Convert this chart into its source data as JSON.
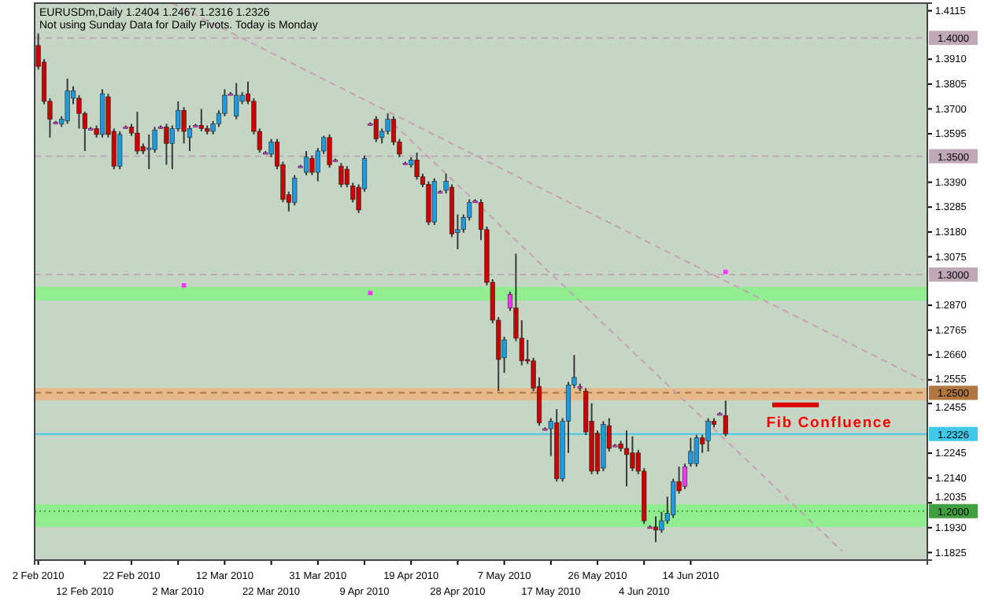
{
  "chart_data": {
    "type": "candlestick",
    "title": "EURUSDm,Daily  1.2404 1.2467 1.2316 1.2326",
    "subtitle": "Not using Sunday Data for Daily Pivots.  Today is Monday",
    "categories": [
      "2 Feb 2010",
      null,
      null,
      null,
      null,
      null,
      null,
      null,
      "12 Feb 2010",
      null,
      null,
      null,
      null,
      null,
      null,
      null,
      "22 Feb 2010",
      null,
      null,
      null,
      null,
      null,
      null,
      null,
      "2 Mar 2010",
      null,
      null,
      null,
      null,
      null,
      null,
      null,
      "12 Mar 2010",
      null,
      null,
      null,
      null,
      null,
      null,
      null,
      "22 Mar 2010",
      null,
      null,
      null,
      null,
      null,
      null,
      null,
      "31 Mar 2010",
      null,
      null,
      null,
      null,
      null,
      null,
      null,
      "9 Apr 2010",
      null,
      null,
      null,
      null,
      null,
      null,
      null,
      "19 Apr 2010",
      null,
      null,
      null,
      null,
      null,
      null,
      null,
      "28 Apr 2010",
      null,
      null,
      null,
      null,
      null,
      null,
      null,
      "7 May 2010",
      null,
      null,
      null,
      null,
      null,
      null,
      null,
      "17 May 2010",
      null,
      null,
      null,
      null,
      null,
      null,
      null,
      "26 May 2010",
      null,
      null,
      null,
      null,
      null,
      null,
      null,
      "4 Jun 2010",
      null,
      null,
      null,
      null,
      null,
      null,
      null,
      "14 Jun 2010",
      null,
      null,
      null,
      null,
      null,
      null,
      null,
      null,
      null,
      null,
      null,
      null,
      null,
      null,
      null,
      null,
      null,
      null,
      null,
      null,
      null,
      null,
      null,
      null,
      null,
      null,
      null,
      null,
      null,
      null,
      null,
      null,
      null,
      null,
      null,
      null,
      null,
      null,
      null,
      null
    ],
    "ohlc": [
      [
        1.3968,
        1.4019,
        1.3866,
        1.3879
      ],
      [
        1.3898,
        1.3911,
        1.372,
        1.3732
      ],
      [
        1.3732,
        1.3745,
        1.3579,
        1.3656
      ],
      [
        1.3643,
        1.3649,
        1.3637,
        1.3643
      ],
      [
        1.3637,
        1.3669,
        1.3624,
        1.3656
      ],
      [
        1.3649,
        1.3828,
        1.3637,
        1.3777
      ],
      [
        1.3745,
        1.3796,
        1.372,
        1.3777
      ],
      [
        1.3745,
        1.3758,
        1.3617,
        1.3681
      ],
      [
        1.3681,
        1.3688,
        1.3522,
        1.3617
      ],
      [
        1.3617,
        1.3624,
        1.3611,
        1.3617
      ],
      [
        1.3617,
        1.363,
        1.3579,
        1.3592
      ],
      [
        1.3592,
        1.3783,
        1.3579,
        1.3764
      ],
      [
        1.3751,
        1.3764,
        1.3579,
        1.3592
      ],
      [
        1.3605,
        1.3617,
        1.3445,
        1.3458
      ],
      [
        1.3458,
        1.3605,
        1.3445,
        1.3592
      ],
      [
        1.3624,
        1.363,
        1.3617,
        1.3624
      ],
      [
        1.3624,
        1.3637,
        1.3586,
        1.3598
      ],
      [
        1.3598,
        1.3688,
        1.3509,
        1.3522
      ],
      [
        1.3541,
        1.3554,
        1.3509,
        1.3522
      ],
      [
        1.3528,
        1.3592,
        1.3445,
        1.3535
      ],
      [
        1.3528,
        1.3624,
        1.3515,
        1.3611
      ],
      [
        1.3624,
        1.363,
        1.3617,
        1.3624
      ],
      [
        1.3624,
        1.3637,
        1.3464,
        1.3554
      ],
      [
        1.3554,
        1.363,
        1.3445,
        1.3617
      ],
      [
        1.3617,
        1.3732,
        1.3605,
        1.3694
      ],
      [
        1.3694,
        1.3707,
        1.3554,
        1.3605
      ],
      [
        1.3579,
        1.363,
        1.3522,
        1.3617
      ],
      [
        1.363,
        1.3637,
        1.3624,
        1.363
      ],
      [
        1.363,
        1.37,
        1.3605,
        1.3617
      ],
      [
        1.3617,
        1.363,
        1.3592,
        1.3605
      ],
      [
        1.3605,
        1.3649,
        1.3592,
        1.3637
      ],
      [
        1.3637,
        1.3694,
        1.3624,
        1.3681
      ],
      [
        1.3681,
        1.3783,
        1.3669,
        1.3758
      ],
      [
        1.3764,
        1.3771,
        1.3758,
        1.3764
      ],
      [
        1.3669,
        1.3809,
        1.3656,
        1.3758
      ],
      [
        1.3732,
        1.3771,
        1.372,
        1.3758
      ],
      [
        1.3764,
        1.3815,
        1.372,
        1.3732
      ],
      [
        1.3732,
        1.3745,
        1.3592,
        1.3605
      ],
      [
        1.3605,
        1.3617,
        1.3515,
        1.3528
      ],
      [
        1.3515,
        1.3522,
        1.3509,
        1.3515
      ],
      [
        1.3509,
        1.3573,
        1.3496,
        1.356
      ],
      [
        1.356,
        1.3573,
        1.3445,
        1.3458
      ],
      [
        1.3464,
        1.3477,
        1.3305,
        1.3318
      ],
      [
        1.3337,
        1.335,
        1.3267,
        1.3305
      ],
      [
        1.3305,
        1.342,
        1.3292,
        1.3407
      ],
      [
        1.3458,
        1.3464,
        1.3452,
        1.3458
      ],
      [
        1.3432,
        1.3522,
        1.342,
        1.3496
      ],
      [
        1.349,
        1.3503,
        1.342,
        1.3432
      ],
      [
        1.3432,
        1.3535,
        1.3394,
        1.3522
      ],
      [
        1.3522,
        1.3586,
        1.3509,
        1.3579
      ],
      [
        1.3579,
        1.3592,
        1.3452,
        1.3464
      ],
      [
        1.3484,
        1.349,
        1.3477,
        1.3484
      ],
      [
        1.3458,
        1.3471,
        1.3369,
        1.3381
      ],
      [
        1.3445,
        1.3458,
        1.3369,
        1.3381
      ],
      [
        1.3375,
        1.3388,
        1.3305,
        1.3318
      ],
      [
        1.3369,
        1.3381,
        1.326,
        1.3273
      ],
      [
        1.3362,
        1.3503,
        1.335,
        1.349
      ],
      [
        1.3637,
        1.3643,
        1.363,
        1.3637
      ],
      [
        1.3656,
        1.3669,
        1.356,
        1.3573
      ],
      [
        1.3579,
        1.3617,
        1.3554,
        1.3605
      ],
      [
        1.3605,
        1.3681,
        1.3592,
        1.3656
      ],
      [
        1.3656,
        1.3669,
        1.3547,
        1.356
      ],
      [
        1.356,
        1.3573,
        1.3496,
        1.3509
      ],
      [
        1.3471,
        1.3477,
        1.3464,
        1.3471
      ],
      [
        1.3464,
        1.3496,
        1.3452,
        1.3484
      ],
      [
        1.3484,
        1.3515,
        1.3401,
        1.3413
      ],
      [
        1.3413,
        1.3426,
        1.3369,
        1.3381
      ],
      [
        1.3381,
        1.3394,
        1.3209,
        1.3222
      ],
      [
        1.3222,
        1.3407,
        1.3209,
        1.3394
      ],
      [
        1.335,
        1.3356,
        1.3343,
        1.335
      ],
      [
        1.3356,
        1.3426,
        1.3343,
        1.3394
      ],
      [
        1.3369,
        1.3381,
        1.3158,
        1.3171
      ],
      [
        1.3177,
        1.3254,
        1.3107,
        1.319
      ],
      [
        1.319,
        1.3254,
        1.3177,
        1.3241
      ],
      [
        1.3241,
        1.3318,
        1.3228,
        1.3305
      ],
      [
        1.3311,
        1.3318,
        1.3305,
        1.3311
      ],
      [
        1.3305,
        1.3318,
        1.3145,
        1.319
      ],
      [
        1.319,
        1.3203,
        1.2954,
        1.2967
      ],
      [
        1.2967,
        1.298,
        1.2794,
        1.2807
      ],
      [
        1.2807,
        1.282,
        1.2507,
        1.2641
      ],
      [
        1.2648,
        1.2737,
        1.2584,
        1.2724
      ],
      [
        1.2916,
        1.2928,
        1.2846,
        1.2858
      ],
      [
        1.2858,
        1.3088,
        1.2718,
        1.2731
      ],
      [
        1.2731,
        1.2807,
        1.2616,
        1.2635
      ],
      [
        1.2641,
        1.2724,
        1.2622,
        1.2635
      ],
      [
        1.2635,
        1.2648,
        1.2507,
        1.252
      ],
      [
        1.2527,
        1.2565,
        1.2361,
        1.2373
      ],
      [
        1.2348,
        1.2354,
        1.2341,
        1.2348
      ],
      [
        1.2348,
        1.2393,
        1.2233,
        1.238
      ],
      [
        1.2373,
        1.2431,
        1.2125,
        1.2137
      ],
      [
        1.2137,
        1.2393,
        1.2125,
        1.238
      ],
      [
        1.238,
        1.2546,
        1.2246,
        1.2533
      ],
      [
        1.2533,
        1.266,
        1.252,
        1.2565
      ],
      [
        1.2527,
        1.2539,
        1.2507,
        1.2527
      ],
      [
        1.2507,
        1.252,
        1.2322,
        1.2335
      ],
      [
        1.238,
        1.2456,
        1.2156,
        1.2169
      ],
      [
        1.2329,
        1.2341,
        1.2156,
        1.2169
      ],
      [
        1.2182,
        1.238,
        1.2169,
        1.2367
      ],
      [
        1.2361,
        1.2393,
        1.2252,
        1.2265
      ],
      [
        1.2278,
        1.2284,
        1.2271,
        1.2278
      ],
      [
        1.2284,
        1.2297,
        1.2252,
        1.2265
      ],
      [
        1.2265,
        1.2341,
        1.2105,
        1.2239
      ],
      [
        1.2246,
        1.2316,
        1.2169,
        1.2182
      ],
      [
        1.2246,
        1.2259,
        1.2156,
        1.2169
      ],
      [
        1.2169,
        1.2182,
        1.1946,
        1.1959
      ],
      [
        1.1933,
        1.194,
        1.1927,
        1.1933
      ],
      [
        1.1933,
        1.1978,
        1.1869,
        1.192
      ],
      [
        1.192,
        1.1997,
        1.1908,
        1.1959
      ],
      [
        1.1959,
        1.2061,
        1.1946,
        1.1991
      ],
      [
        1.1984,
        1.2137,
        1.1971,
        1.2125
      ],
      [
        1.2125,
        1.2188,
        1.2074,
        1.2086
      ],
      [
        1.2105,
        1.2201,
        1.2093,
        1.2188
      ],
      [
        1.2201,
        1.231,
        1.2188,
        1.2252
      ],
      [
        1.2201,
        1.2322,
        1.2188,
        1.231
      ],
      [
        1.231,
        1.2322,
        1.2246,
        1.2284
      ],
      [
        1.2297,
        1.2393,
        1.2252,
        1.238
      ],
      [
        1.238,
        1.2393,
        1.2354,
        1.2367
      ],
      [
        1.2412,
        1.2418,
        1.2405,
        1.2412
      ],
      [
        1.2404,
        1.2467,
        1.2316,
        1.2326
      ],
      null,
      null,
      null,
      null,
      null,
      null,
      null,
      null,
      null,
      null,
      null,
      null,
      null,
      null,
      null,
      null,
      null,
      null,
      null,
      null,
      null,
      null,
      null,
      null,
      null,
      null,
      null,
      null,
      null,
      null,
      null,
      null,
      null,
      null
    ],
    "colors": [
      "#cc0000",
      "#cc0000",
      "#cc0000",
      "#ff33ff",
      "#1e9be0",
      "#1e9be0",
      "#1e9be0",
      "#cc0000",
      "#cc0000",
      "#ff33ff",
      "#cc0000",
      "#1e9be0",
      "#cc0000",
      "#cc0000",
      "#1e9be0",
      "#ff33ff",
      "#cc0000",
      "#cc0000",
      "#cc0000",
      "#1e9be0",
      "#1e9be0",
      "#ff33ff",
      "#cc0000",
      "#1e9be0",
      "#1e9be0",
      "#cc0000",
      "#1e9be0",
      "#ff33ff",
      "#cc0000",
      "#cc0000",
      "#1e9be0",
      "#1e9be0",
      "#1e9be0",
      "#ff33ff",
      "#1e9be0",
      "#1e9be0",
      "#cc0000",
      "#cc0000",
      "#cc0000",
      "#ff33ff",
      "#1e9be0",
      "#cc0000",
      "#cc0000",
      "#cc0000",
      "#1e9be0",
      "#ff33ff",
      "#1e9be0",
      "#cc0000",
      "#1e9be0",
      "#1e9be0",
      "#cc0000",
      "#ff33ff",
      "#cc0000",
      "#cc0000",
      "#cc0000",
      "#cc0000",
      "#1e9be0",
      "#ff33ff",
      "#cc0000",
      "#1e9be0",
      "#1e9be0",
      "#cc0000",
      "#cc0000",
      "#ff33ff",
      "#1e9be0",
      "#cc0000",
      "#cc0000",
      "#cc0000",
      "#1e9be0",
      "#ff33ff",
      "#1e9be0",
      "#cc0000",
      "#1e9be0",
      "#1e9be0",
      "#1e9be0",
      "#ff33ff",
      "#cc0000",
      "#cc0000",
      "#cc0000",
      "#cc0000",
      "#1e9be0",
      "#ff33ff",
      "#cc0000",
      "#cc0000",
      "#cc0000",
      "#cc0000",
      "#cc0000",
      "#ff33ff",
      "#1e9be0",
      "#cc0000",
      "#1e9be0",
      "#1e9be0",
      "#1e9be0",
      "#ff33ff",
      "#cc0000",
      "#cc0000",
      "#cc0000",
      "#1e9be0",
      "#cc0000",
      "#ff33ff",
      "#cc0000",
      "#cc0000",
      "#cc0000",
      "#cc0000",
      "#cc0000",
      "#ff33ff",
      "#cc0000",
      "#1e9be0",
      "#1e9be0",
      "#1e9be0",
      "#cc0000",
      "#ff33ff",
      "#1e9be0",
      "#1e9be0",
      "#cc0000",
      "#1e9be0",
      "#cc0000",
      "#ff33ff",
      "#cc0000",
      null,
      null,
      null,
      null,
      null,
      null,
      null,
      null,
      null,
      null,
      null,
      null,
      null,
      null,
      null,
      null,
      null,
      null,
      null,
      null,
      null,
      null,
      null,
      null,
      null,
      null,
      null,
      null,
      null,
      null,
      null,
      null,
      null,
      null
    ],
    "series": [
      {
        "type": "line",
        "color": "#c8a0b4",
        "line_style": "dashed",
        "values": [
          null,
          null,
          null,
          null,
          null,
          null,
          null,
          null,
          null,
          null,
          null,
          null,
          null,
          null,
          null,
          null,
          null,
          null,
          null,
          null,
          null,
          null,
          null,
          1.4147,
          null,
          null,
          null,
          null,
          null,
          null,
          null,
          null,
          null,
          null,
          null,
          null,
          null,
          null,
          null,
          null,
          null,
          null,
          null,
          null,
          null,
          null,
          null,
          null,
          null,
          null,
          null,
          null,
          null,
          null,
          null,
          null,
          null,
          null,
          null,
          null,
          null,
          null,
          null,
          null,
          null,
          null,
          null,
          null,
          null,
          null,
          null,
          null,
          null,
          null,
          null,
          null,
          null,
          null,
          null,
          null,
          null,
          null,
          null,
          null,
          null,
          null,
          null,
          null,
          null,
          null,
          null,
          null,
          null,
          null,
          null,
          null,
          null,
          null,
          null,
          null,
          null,
          null,
          null,
          null,
          null,
          null,
          null,
          null,
          null,
          null,
          null,
          null,
          null,
          null,
          null,
          null,
          null,
          null,
          null,
          null,
          null,
          null,
          null,
          null,
          null,
          null,
          null,
          null,
          null,
          null,
          null,
          null,
          null,
          null,
          null,
          null,
          null,
          null,
          null,
          null,
          null,
          null,
          null,
          null,
          null,
          null,
          null,
          null,
          null,
          null,
          null,
          null,
          1.2552
        ]
      },
      {
        "type": "line",
        "color": "#c8a0b4",
        "line_style": "dashed",
        "values": [
          null,
          null,
          null,
          null,
          null,
          null,
          null,
          null,
          null,
          null,
          null,
          null,
          null,
          null,
          null,
          null,
          null,
          null,
          null,
          null,
          null,
          null,
          null,
          null,
          null,
          null,
          null,
          null,
          null,
          null,
          null,
          null,
          null,
          null,
          null,
          null,
          null,
          null,
          null,
          null,
          null,
          null,
          null,
          null,
          null,
          null,
          null,
          null,
          null,
          null,
          null,
          null,
          null,
          null,
          null,
          null,
          null,
          null,
          null,
          null,
          null,
          1.3637,
          null,
          null,
          null,
          null,
          null,
          null,
          null,
          null,
          null,
          null,
          null,
          null,
          null,
          null,
          null,
          null,
          null,
          null,
          null,
          null,
          null,
          null,
          null,
          null,
          null,
          null,
          null,
          null,
          null,
          null,
          null,
          null,
          null,
          null,
          null,
          null,
          null,
          null,
          null,
          null,
          null,
          null,
          null,
          null,
          null,
          null,
          null,
          null,
          null,
          null,
          null,
          null,
          null,
          null,
          null,
          null,
          null,
          null,
          null,
          null,
          null,
          null,
          null,
          null,
          null,
          null,
          null,
          null,
          null,
          null,
          null,
          null,
          null,
          null,
          null,
          null,
          1.1831,
          null,
          null,
          null,
          null,
          null,
          null,
          null,
          null,
          null,
          null,
          null,
          null,
          null,
          null
        ]
      },
      {
        "type": "scatter",
        "color": "#ff33ff",
        "marker": "square",
        "values": [
          null,
          null,
          null,
          null,
          null,
          null,
          null,
          null,
          null,
          null,
          null,
          null,
          null,
          null,
          null,
          null,
          null,
          null,
          null,
          null,
          null,
          null,
          null,
          null,
          null,
          1.2954,
          null,
          null,
          null,
          null,
          null,
          null,
          null,
          null,
          null,
          null,
          null,
          null,
          null,
          null,
          null,
          null,
          null,
          null,
          null,
          null,
          null,
          null,
          null,
          null,
          null,
          null,
          null,
          null,
          null,
          null,
          null,
          1.2922,
          null,
          null,
          null,
          null,
          null,
          null,
          null,
          null,
          null,
          null,
          null,
          null,
          null,
          null,
          null,
          null,
          null,
          null,
          null,
          null,
          null,
          null,
          null,
          null,
          null,
          null,
          null,
          null,
          null,
          null,
          null,
          null,
          null,
          null,
          null,
          null,
          null,
          null,
          null,
          null,
          null,
          null,
          null,
          null,
          null,
          null,
          null,
          null,
          null,
          null,
          null,
          null,
          null,
          null,
          null,
          null,
          null,
          null,
          null,
          null,
          1.3011,
          null,
          null,
          null,
          null,
          null,
          null,
          null,
          null,
          null,
          null,
          null,
          null,
          null,
          null,
          null,
          null,
          null,
          null,
          null,
          null,
          null,
          null,
          null,
          null,
          null,
          null,
          null,
          null,
          null,
          null,
          null,
          null,
          null,
          null
        ]
      }
    ],
    "ylim": [
      1.1793,
      1.4147
    ],
    "yticks": [
      1.4115,
      {
        "value": 1.391,
        "label": "1.3910"
      },
      1.3805,
      {
        "value": 1.37,
        "label": "1.3700"
      },
      1.3595,
      {
        "value": 1.339,
        "label": "1.3390"
      },
      1.3285,
      {
        "value": 1.318,
        "label": "1.3180"
      },
      1.3075,
      {
        "value": 1.287,
        "label": "1.2870"
      },
      1.2765,
      {
        "value": 1.266,
        "label": "1.2660"
      },
      1.2555,
      1.2455,
      1.2245,
      {
        "value": 1.214,
        "label": "1.2140"
      },
      1.2035,
      {
        "value": 1.193,
        "label": "1.1930"
      },
      1.1825
    ],
    "bands": [
      {
        "axis": "y",
        "from": 1.289,
        "to": 1.2948,
        "color": "#90ee90"
      },
      {
        "axis": "y",
        "from": 1.2469,
        "to": 1.252,
        "color": "#e6b98a"
      },
      {
        "axis": "y",
        "from": 1.1933,
        "to": 1.2029,
        "color": "#90ee90"
      }
    ],
    "ref_lines": [
      {
        "axis": "y",
        "value": 1.4,
        "label": "1.4000",
        "color": "#c0a8b8",
        "line_style": "dashed"
      },
      {
        "axis": "y",
        "value": 1.35,
        "label": "1.3500",
        "color": "#c0a8b8",
        "line_style": "dashed"
      },
      {
        "axis": "y",
        "value": 1.3,
        "label": "1.3000",
        "color": "#c0a8b8",
        "line_style": "dashed"
      },
      {
        "axis": "y",
        "value": 1.25,
        "label": "1.2500",
        "color": "#b07840",
        "line_style": "dashed"
      },
      {
        "axis": "y",
        "value": 1.2326,
        "label": "1.2326",
        "color": "#40c8e8",
        "line_style": "solid"
      },
      {
        "axis": "y",
        "value": 1.2,
        "label": "1.2000",
        "color": "#40a040",
        "line_style": "dotted"
      }
    ],
    "annotations": [
      "Fib Confluence"
    ]
  }
}
